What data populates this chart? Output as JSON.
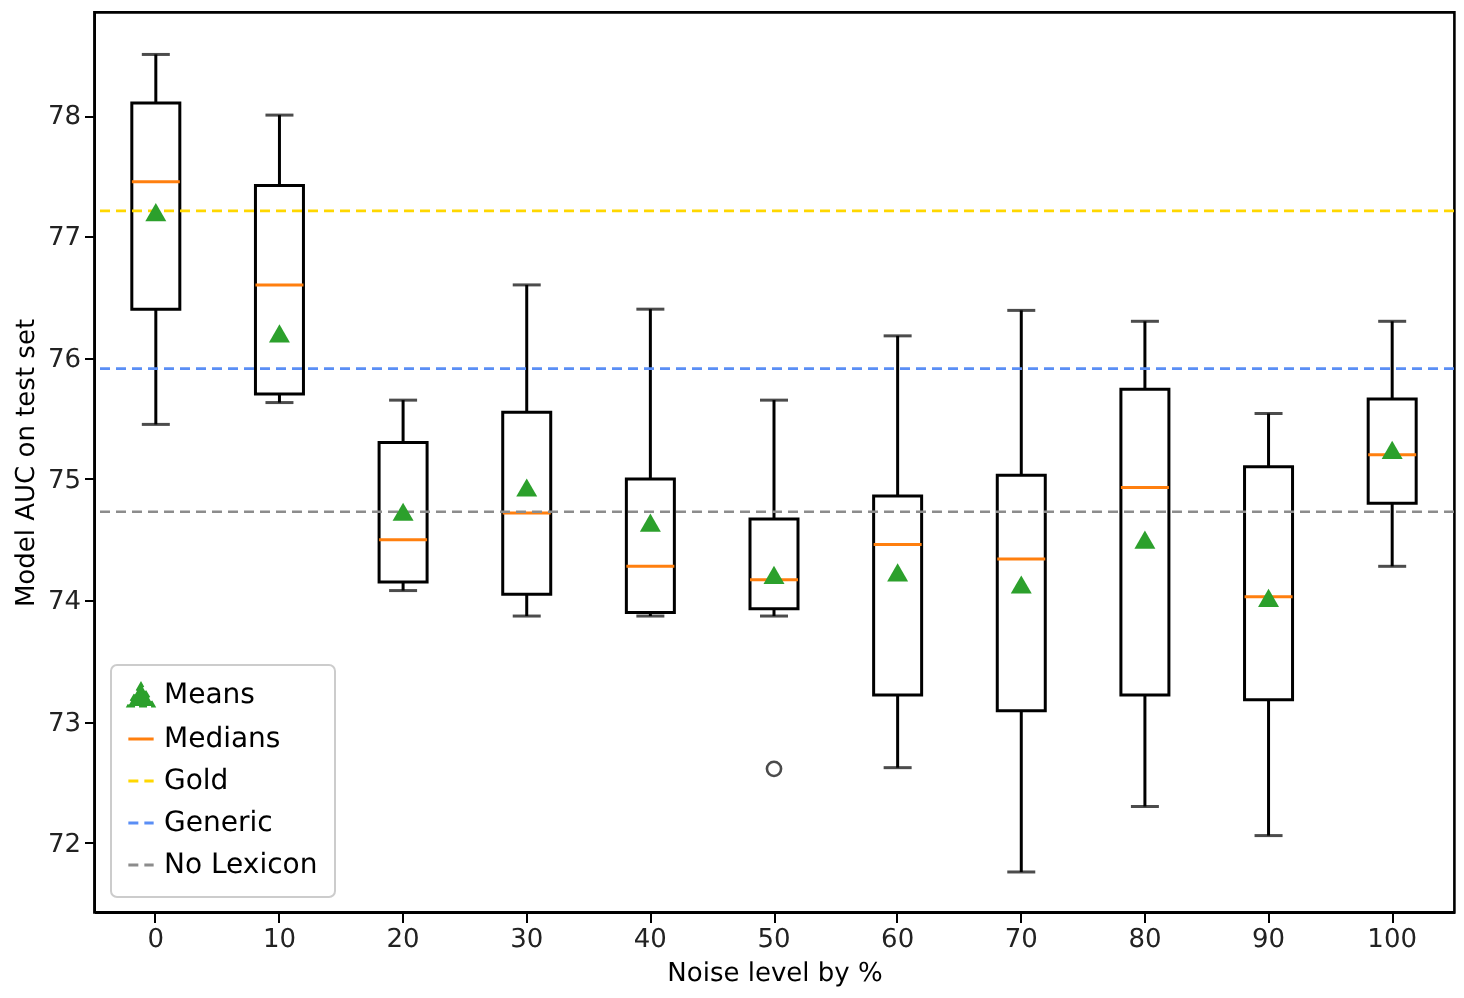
{
  "chart_data": {
    "type": "box",
    "xlabel": "Noise level by %",
    "ylabel": "Model AUC on test set",
    "categories": [
      "0",
      "10",
      "20",
      "30",
      "40",
      "50",
      "60",
      "70",
      "80",
      "90",
      "100"
    ],
    "ylim": [
      71.43,
      78.85
    ],
    "yticks": [
      72,
      73,
      74,
      75,
      76,
      77,
      78
    ],
    "grid": false,
    "legend": "bottom left",
    "series": [
      {
        "name": "Means",
        "type": "scatter",
        "color": "#2ca02c",
        "marker": "triangle",
        "x": [
          "0",
          "10",
          "20",
          "30",
          "40",
          "50",
          "60",
          "70",
          "80",
          "90",
          "100"
        ],
        "values": [
          77.2,
          76.2,
          74.73,
          74.93,
          74.64,
          74.21,
          74.23,
          74.13,
          74.5,
          74.02,
          75.24
        ]
      },
      {
        "name": "Medians",
        "type": "box",
        "color": "#ff7f0e",
        "boxes": [
          {
            "low": 75.45,
            "q1": 76.4,
            "median": 77.45,
            "q3": 78.1,
            "high": 78.5
          },
          {
            "low": 75.63,
            "q1": 75.7,
            "median": 76.6,
            "q3": 77.42,
            "high": 78.0
          },
          {
            "low": 74.08,
            "q1": 74.15,
            "median": 74.5,
            "q3": 75.3,
            "high": 75.65
          },
          {
            "low": 73.87,
            "q1": 74.05,
            "median": 74.72,
            "q3": 75.55,
            "high": 76.6
          },
          {
            "low": 73.87,
            "q1": 73.9,
            "median": 74.28,
            "q3": 75.0,
            "high": 76.4
          },
          {
            "low": 73.87,
            "q1": 73.93,
            "median": 74.17,
            "q3": 74.67,
            "high": 75.65,
            "outliers": [
              72.61
            ]
          },
          {
            "low": 72.62,
            "q1": 73.22,
            "median": 74.46,
            "q3": 74.86,
            "high": 76.18
          },
          {
            "low": 71.76,
            "q1": 73.09,
            "median": 74.34,
            "q3": 75.03,
            "high": 76.39
          },
          {
            "low": 72.3,
            "q1": 73.22,
            "median": 74.93,
            "q3": 75.74,
            "high": 76.3
          },
          {
            "low": 72.06,
            "q1": 73.18,
            "median": 74.03,
            "q3": 75.1,
            "high": 75.54
          },
          {
            "low": 74.28,
            "q1": 74.8,
            "median": 75.2,
            "q3": 75.66,
            "high": 76.3
          }
        ]
      }
    ],
    "ref_lines": [
      {
        "axis": "y",
        "value": 77.21,
        "label": "Gold",
        "color": "#ffd700",
        "line_style": "dashed"
      },
      {
        "axis": "y",
        "value": 75.91,
        "label": "Generic",
        "color": "#5a8ef5",
        "line_style": "dashed"
      },
      {
        "axis": "y",
        "value": 74.73,
        "label": "No Lexicon",
        "color": "#8c8c8c",
        "line_style": "dashed"
      }
    ]
  }
}
